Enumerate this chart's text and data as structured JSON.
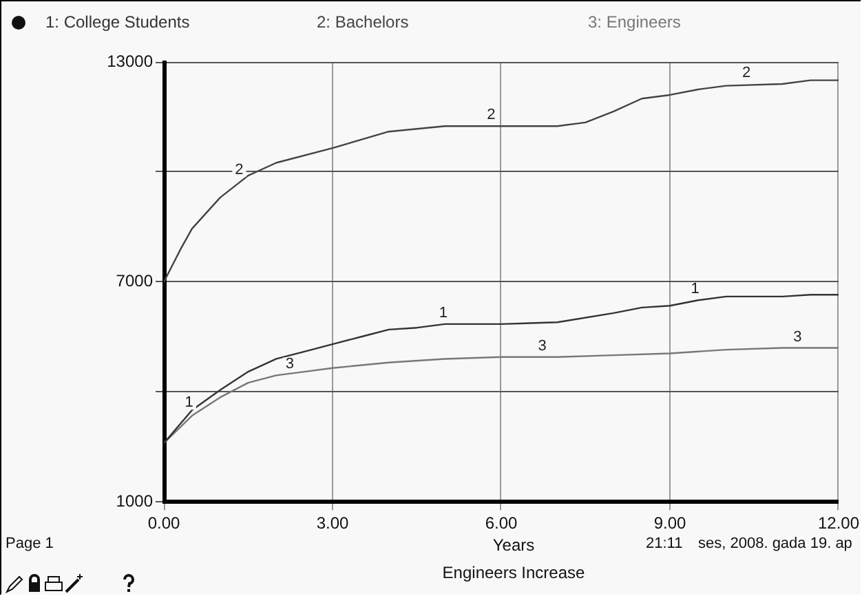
{
  "chart_data": {
    "type": "line",
    "title": "Engineers Increase",
    "xlabel": "Years",
    "xlim": [
      0,
      12
    ],
    "xticks": [
      {
        "value": 0,
        "label": "0.00"
      },
      {
        "value": 3,
        "label": "3.00"
      },
      {
        "value": 6,
        "label": "6.00"
      },
      {
        "value": 9,
        "label": "9.00"
      },
      {
        "value": 12,
        "label": "12.00"
      }
    ],
    "ylim": [
      1000,
      13000
    ],
    "yticks": [
      1000,
      {
        "value": 4000,
        "label": null
      },
      7000,
      {
        "value": 10000,
        "label": null
      },
      13000
    ],
    "grid": true,
    "legend": "top",
    "marker": "none",
    "line_style": "solid",
    "series": [
      {
        "name": "1: College Students",
        "color": "#333333",
        "x": [
          0,
          0.5,
          1,
          1.5,
          2,
          2.5,
          3,
          3.5,
          4,
          4.5,
          5,
          6,
          7,
          8,
          8.5,
          9,
          9.5,
          10,
          11,
          11.5,
          12
        ],
        "values": [
          2600,
          3500,
          4050,
          4550,
          4900,
          5100,
          5300,
          5500,
          5700,
          5750,
          5850,
          5850,
          5900,
          6150,
          6300,
          6350,
          6500,
          6600,
          6600,
          6650,
          6650
        ]
      },
      {
        "name": "2: Bachelors",
        "color": "#444444",
        "x": [
          0,
          0.3,
          0.5,
          1,
          1.5,
          2,
          3,
          4,
          5,
          6,
          7,
          7.5,
          8,
          8.5,
          9,
          9.5,
          10,
          11,
          11.5,
          12
        ],
        "values": [
          7000,
          7900,
          8450,
          9300,
          9900,
          10250,
          10650,
          11100,
          11250,
          11250,
          11250,
          11350,
          11650,
          12000,
          12100,
          12250,
          12350,
          12400,
          12500,
          12500
        ]
      },
      {
        "name": "3: Engineers",
        "color": "#777777",
        "x": [
          0,
          0.5,
          1,
          1.5,
          2,
          2.5,
          3,
          4,
          5,
          6,
          7,
          8,
          9,
          10,
          11,
          12
        ],
        "values": [
          2600,
          3350,
          3850,
          4250,
          4450,
          4550,
          4650,
          4800,
          4900,
          4950,
          4950,
          5000,
          5050,
          5150,
          5200,
          5200
        ]
      }
    ],
    "annotations": [
      {
        "text": "1",
        "x": 0.45,
        "y": 3400
      },
      {
        "text": "1",
        "x": 4.97,
        "y": 5850
      },
      {
        "text": "1",
        "x": 9.45,
        "y": 6500
      },
      {
        "text": "2",
        "x": 1.34,
        "y": 9750
      },
      {
        "text": "2",
        "x": 5.82,
        "y": 11250
      },
      {
        "text": "2",
        "x": 10.36,
        "y": 12400
      },
      {
        "text": "3",
        "x": 2.24,
        "y": 4450
      },
      {
        "text": "3",
        "x": 6.73,
        "y": 4950
      },
      {
        "text": "3",
        "x": 11.27,
        "y": 5200
      },
      "Page 1",
      "21:11",
      "ses, 2008. gada 19. ap"
    ]
  }
}
